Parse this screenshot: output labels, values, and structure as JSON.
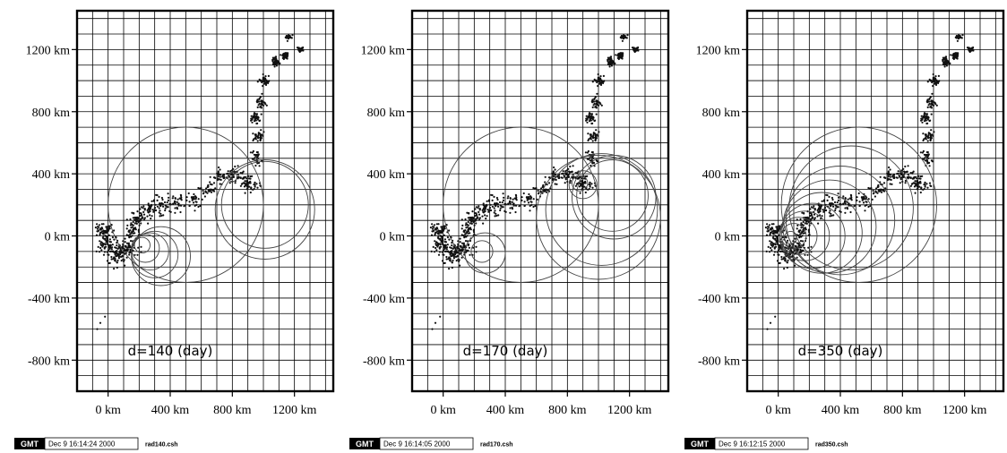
{
  "chart_data": [
    {
      "type": "scatter",
      "title": "",
      "xlabel": "",
      "ylabel": "",
      "xlim": [
        -200,
        1450
      ],
      "ylim": [
        -1000,
        1450
      ],
      "xtick_labels": [
        "0 km",
        "400 km",
        "800 km",
        "1200 km"
      ],
      "xtick_values": [
        0,
        400,
        800,
        1200
      ],
      "ytick_labels": [
        "1200 km",
        "800 km",
        "400 km",
        "0 km",
        "-400 km",
        "-800 km"
      ],
      "ytick_values": [
        1200,
        800,
        400,
        0,
        -400,
        -800
      ],
      "grid": true,
      "annotation": "d=140 (day)",
      "circles": [
        {
          "x": 220,
          "y": -60,
          "r": 50
        },
        {
          "x": 240,
          "y": -80,
          "r": 90
        },
        {
          "x": 270,
          "y": -100,
          "r": 120
        },
        {
          "x": 300,
          "y": -120,
          "r": 150
        },
        {
          "x": 340,
          "y": -130,
          "r": 190
        },
        {
          "x": 500,
          "y": 200,
          "r": 500
        },
        {
          "x": 1010,
          "y": 200,
          "r": 280
        },
        {
          "x": 1010,
          "y": 170,
          "r": 320
        },
        {
          "x": 800,
          "y": 380,
          "r": 30
        }
      ],
      "timestamp": {
        "label": "GMT",
        "date": "Dec  9 16:14:24 2000",
        "file": "rad140.csh"
      }
    },
    {
      "type": "scatter",
      "title": "",
      "xlabel": "",
      "ylabel": "",
      "xlim": [
        -200,
        1450
      ],
      "ylim": [
        -1000,
        1450
      ],
      "xtick_labels": [
        "0 km",
        "400 km",
        "800 km",
        "1200 km"
      ],
      "xtick_values": [
        0,
        400,
        800,
        1200
      ],
      "ytick_labels": [
        "1200 km",
        "800 km",
        "400 km",
        "0 km",
        "-400 km",
        "-800 km"
      ],
      "ytick_values": [
        1200,
        800,
        400,
        0,
        -400,
        -800
      ],
      "grid": true,
      "annotation": "d=170 (day)",
      "circles": [
        {
          "x": 250,
          "y": -100,
          "r": 70
        },
        {
          "x": 270,
          "y": -110,
          "r": 130
        },
        {
          "x": 500,
          "y": 200,
          "r": 500
        },
        {
          "x": 880,
          "y": 340,
          "r": 50
        },
        {
          "x": 900,
          "y": 330,
          "r": 90
        },
        {
          "x": 1090,
          "y": 260,
          "r": 230
        },
        {
          "x": 1100,
          "y": 250,
          "r": 270
        },
        {
          "x": 1020,
          "y": 170,
          "r": 360
        },
        {
          "x": 1000,
          "y": 120,
          "r": 400
        }
      ],
      "timestamp": {
        "label": "GMT",
        "date": "Dec  9 16:14:05 2000",
        "file": "rad170.csh"
      }
    },
    {
      "type": "scatter",
      "title": "",
      "xlabel": "",
      "ylabel": "",
      "xlim": [
        -200,
        1450
      ],
      "ylim": [
        -1000,
        1450
      ],
      "xtick_labels": [
        "0 km",
        "400 km",
        "800 km",
        "1200 km"
      ],
      "xtick_values": [
        0,
        400,
        800,
        1200
      ],
      "ytick_labels": [
        "1200 km",
        "800 km",
        "400 km",
        "0 km",
        "-400 km",
        "-800 km"
      ],
      "ytick_values": [
        1200,
        800,
        400,
        0,
        -400,
        -800
      ],
      "grid": true,
      "annotation": "d=350 (day)",
      "circles": [
        {
          "x": 80,
          "y": -10,
          "r": 40
        },
        {
          "x": 100,
          "y": 0,
          "r": 80
        },
        {
          "x": 130,
          "y": 0,
          "r": 120
        },
        {
          "x": 170,
          "y": 0,
          "r": 160
        },
        {
          "x": 220,
          "y": 0,
          "r": 210
        },
        {
          "x": 280,
          "y": 20,
          "r": 260
        },
        {
          "x": 330,
          "y": 60,
          "r": 300
        },
        {
          "x": 400,
          "y": 100,
          "r": 350
        },
        {
          "x": 470,
          "y": 180,
          "r": 400
        },
        {
          "x": 520,
          "y": 200,
          "r": 500
        }
      ],
      "timestamp": {
        "label": "GMT",
        "date": "Dec  9 16:12:15 2000",
        "file": "rad350.csh"
      }
    }
  ],
  "points_seed": 7,
  "colors": {
    "axis": "#000000",
    "grid": "#000000",
    "circle": "#444444",
    "point": "#111111"
  }
}
